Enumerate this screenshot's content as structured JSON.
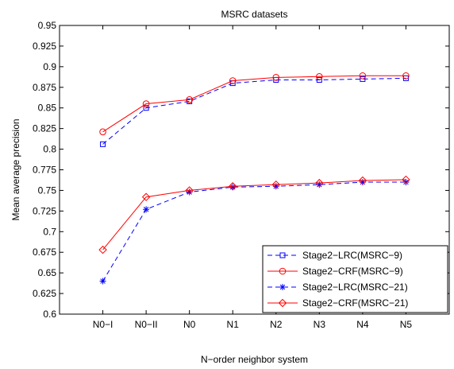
{
  "chart_data": {
    "type": "line",
    "title": "MSRC datasets",
    "xlabel": "N−order neighbor system",
    "ylabel": "Mean average precision",
    "categories": [
      "N0−I",
      "N0−II",
      "N0",
      "N1",
      "N2",
      "N3",
      "N4",
      "N5"
    ],
    "ylim": [
      0.6,
      0.95
    ],
    "yticks": [
      "0.6",
      "0.625",
      "0.65",
      "0.675",
      "0.7",
      "0.725",
      "0.75",
      "0.775",
      "0.8",
      "0.825",
      "0.85",
      "0.875",
      "0.9",
      "0.925",
      "0.95"
    ],
    "grid": false,
    "legend_position": "bottom-right",
    "series": [
      {
        "name": "Stage2−LRC(MSRC−9)",
        "color": "#0000ff",
        "line_style": "dashed",
        "marker": "square",
        "values": [
          0.806,
          0.85,
          0.858,
          0.88,
          0.884,
          0.884,
          0.885,
          0.886
        ]
      },
      {
        "name": "Stage2−CRF(MSRC−9)",
        "color": "#ff0000",
        "line_style": "solid",
        "marker": "circle",
        "values": [
          0.821,
          0.855,
          0.86,
          0.883,
          0.887,
          0.888,
          0.889,
          0.889
        ]
      },
      {
        "name": "Stage2−LRC(MSRC−21)",
        "color": "#0000ff",
        "line_style": "dashed",
        "marker": "asterisk",
        "values": [
          0.64,
          0.727,
          0.748,
          0.754,
          0.755,
          0.757,
          0.76,
          0.76
        ]
      },
      {
        "name": "Stage2−CRF(MSRC−21)",
        "color": "#ff0000",
        "line_style": "solid",
        "marker": "diamond",
        "values": [
          0.678,
          0.742,
          0.75,
          0.755,
          0.757,
          0.759,
          0.762,
          0.763
        ]
      }
    ]
  }
}
